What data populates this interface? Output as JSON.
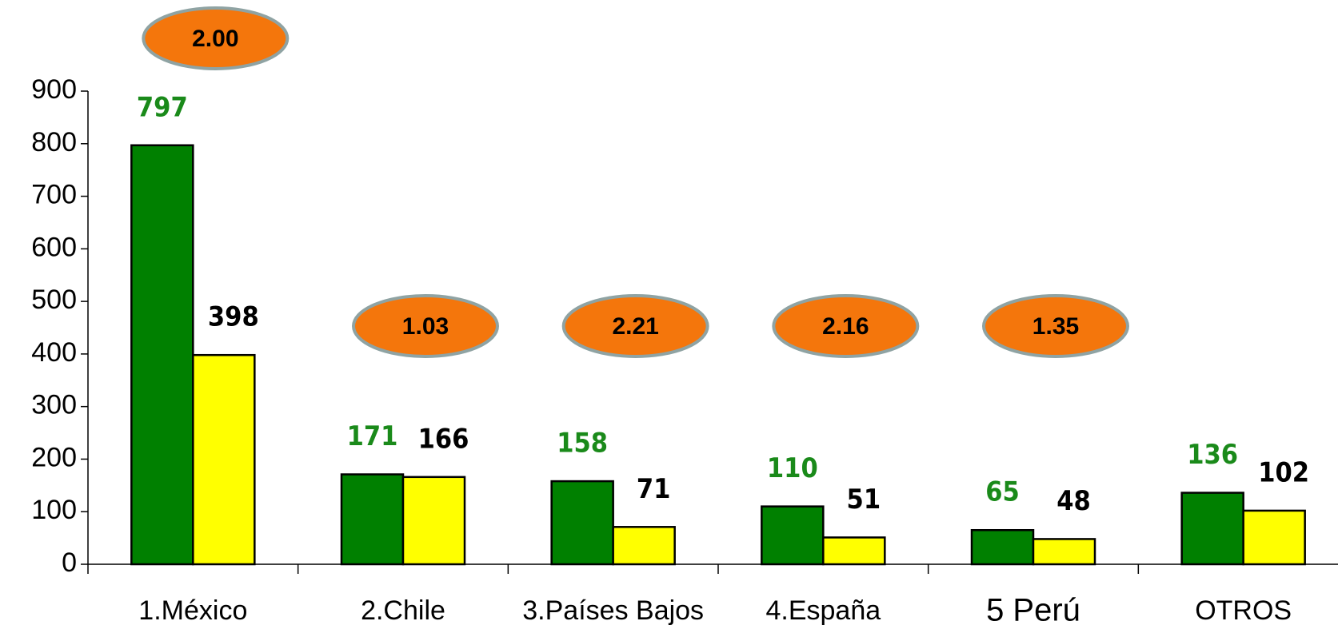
{
  "chart_data": {
    "type": "bar",
    "categories": [
      "1.México",
      "2.Chile",
      "3.Países Bajos",
      "4.España",
      "5 Perú",
      "OTROS"
    ],
    "category_colors": [
      "#000000",
      "#000000",
      "#000000",
      "#000000",
      "#ff0000",
      "#000000"
    ],
    "series": [
      {
        "color": "#008000",
        "label_color": "#1a8a1a",
        "values": [
          797,
          171,
          158,
          110,
          65,
          136
        ]
      },
      {
        "color": "#ffff00",
        "label_color": "#000000",
        "values": [
          398,
          166,
          71,
          51,
          48,
          102
        ]
      }
    ],
    "annotations": [
      "2.00",
      "1.03",
      "2.21",
      "2.16",
      "1.35",
      null
    ],
    "annotation_color": "#f4760c",
    "ylim": [
      0,
      900
    ],
    "yticks": [
      0,
      100,
      200,
      300,
      400,
      500,
      600,
      700,
      800,
      900
    ]
  }
}
